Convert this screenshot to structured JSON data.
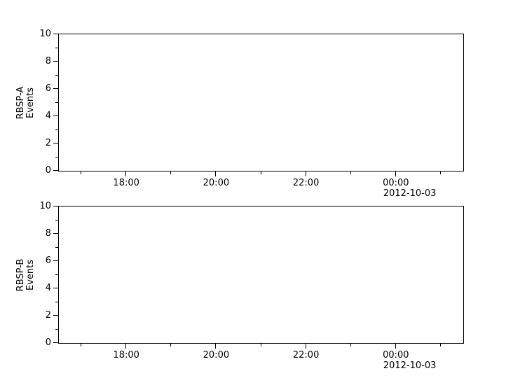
{
  "figure": {
    "background": "#ffffff",
    "foreground": "#000000",
    "title": ""
  },
  "chart_data": [
    {
      "type": "line",
      "title": "",
      "xlabel": "",
      "ylabel": "RBSP-A\nEvents",
      "ylabel_lines": [
        "RBSP-A",
        "Events"
      ],
      "ylim": [
        0,
        10
      ],
      "y_major_ticks": [
        0,
        2,
        4,
        6,
        8,
        10
      ],
      "y_minor_ticks": [
        1,
        3,
        5,
        7,
        9
      ],
      "x_range_hours": [
        16.5,
        25.5
      ],
      "x_major_ticks": [
        {
          "hours": 18,
          "label": "18:00"
        },
        {
          "hours": 20,
          "label": "20:00"
        },
        {
          "hours": 22,
          "label": "22:00"
        },
        {
          "hours": 24,
          "label": "00:00",
          "date_below": "2012-10-03"
        }
      ],
      "x_minor_ticks_hours": [
        17,
        19,
        21,
        23,
        25
      ],
      "grid": false,
      "legend": null,
      "series": []
    },
    {
      "type": "line",
      "title": "",
      "xlabel": "",
      "ylabel": "RBSP-B\nEvents",
      "ylabel_lines": [
        "RBSP-B",
        "Events"
      ],
      "ylim": [
        0,
        10
      ],
      "y_major_ticks": [
        0,
        2,
        4,
        6,
        8,
        10
      ],
      "y_minor_ticks": [
        1,
        3,
        5,
        7,
        9
      ],
      "x_range_hours": [
        16.5,
        25.5
      ],
      "x_major_ticks": [
        {
          "hours": 18,
          "label": "18:00"
        },
        {
          "hours": 20,
          "label": "20:00"
        },
        {
          "hours": 22,
          "label": "22:00"
        },
        {
          "hours": 24,
          "label": "00:00",
          "date_below": "2012-10-03"
        }
      ],
      "x_minor_ticks_hours": [
        17,
        19,
        21,
        23,
        25
      ],
      "grid": false,
      "legend": null,
      "series": []
    }
  ]
}
